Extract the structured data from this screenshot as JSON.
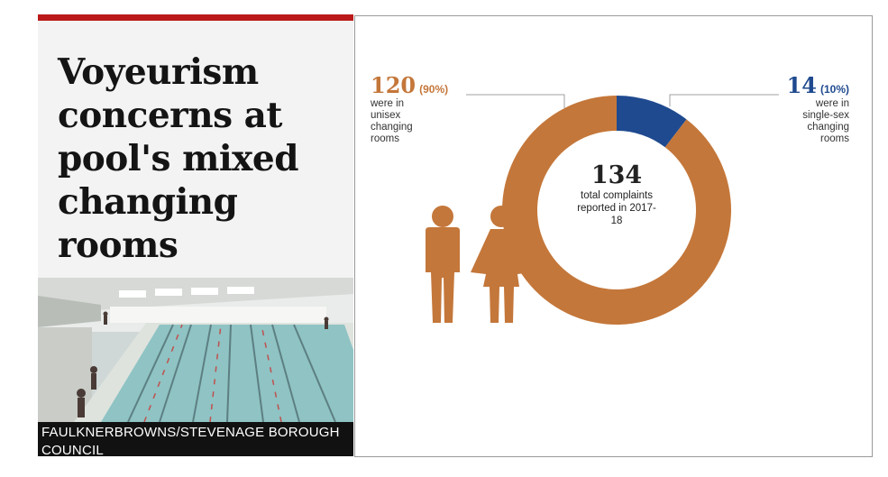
{
  "article": {
    "headline": "Voyeurism concerns at pool's mixed changing rooms",
    "photo_caption": "FAULKNERBROWNS/STEVENAGE BOROUGH COUNCIL"
  },
  "colors": {
    "unisex": "#c4773a",
    "single_sex": "#1f4a8f",
    "bbc_red": "#bb1919"
  },
  "icons": [
    "man-icon",
    "woman-icon"
  ],
  "chart_data": {
    "type": "pie",
    "variant": "donut",
    "total": {
      "value": "134",
      "label": "total complaints reported in 2017-18"
    },
    "slices": [
      {
        "label": "were in unisex changing rooms",
        "value": 120,
        "value_text": "120",
        "percent_text": "(90%)",
        "color": "#c4773a"
      },
      {
        "label": "were in single-sex changing rooms",
        "value": 14,
        "value_text": "14",
        "percent_text": "(10%)",
        "color": "#1f4a8f"
      }
    ]
  }
}
